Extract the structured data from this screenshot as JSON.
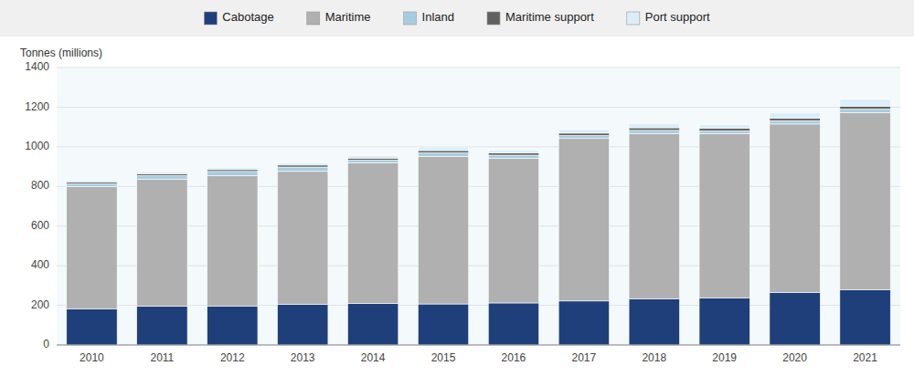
{
  "chart_data": {
    "type": "bar",
    "stacked": true,
    "ylabel": "Tonnes (millions)",
    "categories": [
      "2010",
      "2011",
      "2012",
      "2013",
      "2014",
      "2015",
      "2016",
      "2017",
      "2018",
      "2019",
      "2020",
      "2021"
    ],
    "series": [
      {
        "name": "Cabotage",
        "color": "#1f3f7a",
        "values": [
          183,
          196,
          197,
          204,
          209,
          207,
          212,
          222,
          232,
          237,
          265,
          278
        ]
      },
      {
        "name": "Maritime",
        "color": "#b0b0b0",
        "values": [
          617,
          641,
          657,
          672,
          710,
          745,
          730,
          820,
          835,
          830,
          850,
          895
        ]
      },
      {
        "name": "Inland",
        "color": "#a8ccdf",
        "values": [
          14,
          18,
          22,
          22,
          14,
          18,
          16,
          15,
          16,
          14,
          17,
          18
        ]
      },
      {
        "name": "Maritime support",
        "color": "#606060",
        "values": [
          8,
          9,
          9,
          10,
          10,
          11,
          11,
          12,
          13,
          13,
          13,
          14
        ]
      },
      {
        "name": "Port support",
        "color": "#ddeef8",
        "values": [
          10,
          11,
          11,
          11,
          12,
          18,
          14,
          18,
          22,
          18,
          28,
          35
        ]
      }
    ],
    "ylim": [
      0,
      1400
    ],
    "yticks": [
      0,
      200,
      400,
      600,
      800,
      1000,
      1200,
      1400
    ],
    "grid": true,
    "legend": "top"
  }
}
